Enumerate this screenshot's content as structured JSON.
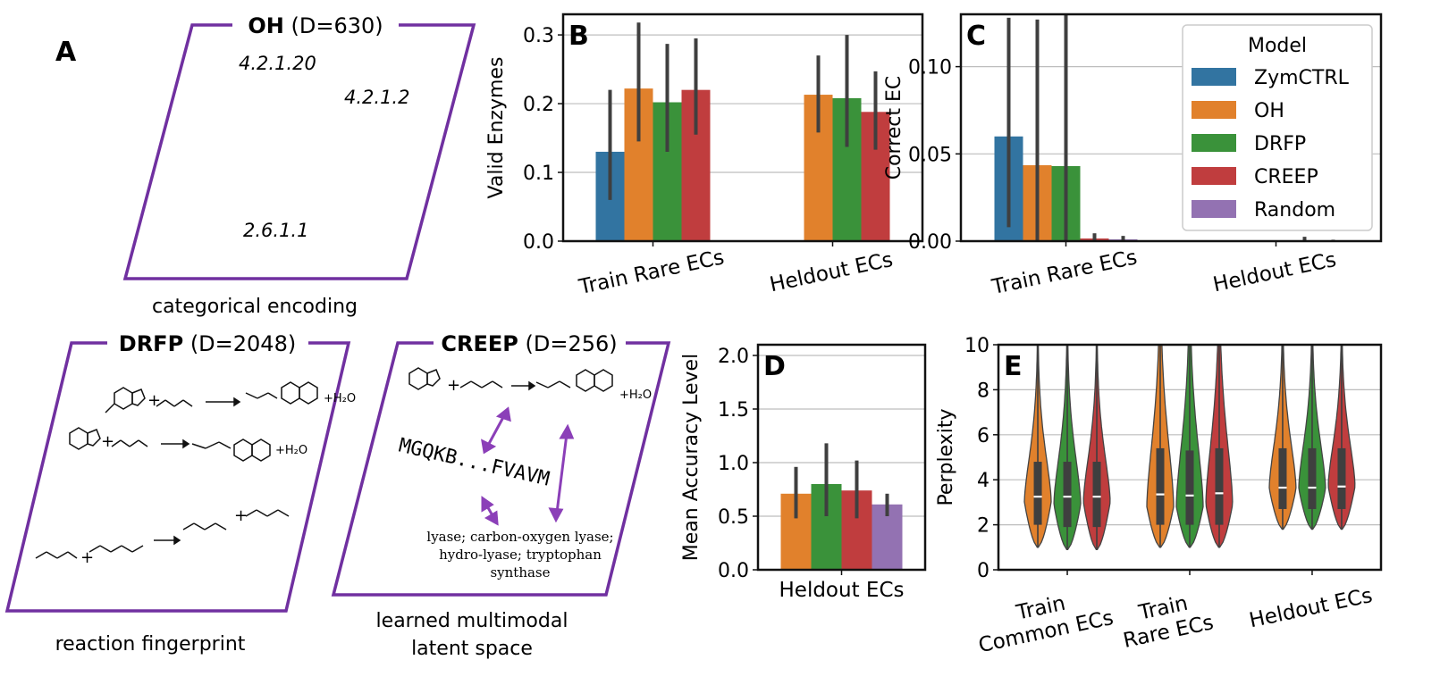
{
  "panel_labels": {
    "a": "A",
    "b": "B",
    "c": "C",
    "d": "D",
    "e": "E"
  },
  "colors": {
    "blue": "#3274a1",
    "orange": "#e1812c",
    "green": "#3a923a",
    "red": "#c03d3e",
    "purple": "#9372b2",
    "frame": "#7030a0",
    "grid": "#bdbdbd",
    "err": "#3f3f3f"
  },
  "schematic": {
    "oh": {
      "name": "OH",
      "dim": "(D=630)",
      "ecs": [
        "4.2.1.20",
        "4.2.1.2",
        "2.6.1.1"
      ],
      "caption": "categorical encoding"
    },
    "drfp": {
      "name": "DRFP",
      "dim": "(D=2048)",
      "caption": "reaction fingerprint"
    },
    "creep": {
      "name": "CREEP",
      "dim": "(D=256)",
      "sequence": "MGQKB...FVAVM",
      "text_lines": [
        "lyase; carbon-oxygen lyase;",
        "hydro-lyase; tryptophan",
        "synthase"
      ],
      "caption_lines": [
        "learned multimodal",
        "latent space"
      ]
    },
    "chem": {
      "water": "+H₂O",
      "plus": "+"
    }
  },
  "chart_data": [
    {
      "id": "B",
      "type": "bar",
      "ylabel": "Valid Enzymes",
      "ylim": [
        0,
        0.33
      ],
      "yticks": [
        0.0,
        0.1,
        0.2,
        0.3
      ],
      "ytick_labels": [
        "0.0",
        "0.1",
        "0.2",
        "0.3"
      ],
      "categories": [
        "Train Rare ECs",
        "Heldout ECs"
      ],
      "series": [
        {
          "name": "ZymCTRL",
          "color": "blue",
          "values": [
            0.13,
            null
          ],
          "err_low": [
            0.06,
            null
          ],
          "err_high": [
            0.22,
            null
          ]
        },
        {
          "name": "OH",
          "color": "orange",
          "values": [
            0.222,
            0.213
          ],
          "err_low": [
            0.145,
            0.158
          ],
          "err_high": [
            0.318,
            0.27
          ]
        },
        {
          "name": "DRFP",
          "color": "green",
          "values": [
            0.202,
            0.208
          ],
          "err_low": [
            0.13,
            0.137
          ],
          "err_high": [
            0.287,
            0.3
          ]
        },
        {
          "name": "CREEP",
          "color": "red",
          "values": [
            0.22,
            0.188
          ],
          "err_low": [
            0.155,
            0.133
          ],
          "err_high": [
            0.295,
            0.247
          ]
        }
      ]
    },
    {
      "id": "C",
      "type": "bar",
      "ylabel": "Correct EC",
      "ylim": [
        0,
        0.13
      ],
      "yticks": [
        0.0,
        0.05,
        0.1
      ],
      "ytick_labels": [
        "0.00",
        "0.05",
        "0.10"
      ],
      "categories": [
        "Train Rare ECs",
        "Heldout ECs"
      ],
      "series": [
        {
          "name": "ZymCTRL",
          "color": "blue",
          "values": [
            0.06,
            null
          ],
          "err_low": [
            0.008,
            null
          ],
          "err_high": [
            0.128,
            null
          ]
        },
        {
          "name": "OH",
          "color": "orange",
          "values": [
            0.0435,
            0.0002
          ],
          "err_low": [
            0.0,
            0.0
          ],
          "err_high": [
            0.127,
            0.0005
          ]
        },
        {
          "name": "DRFP",
          "color": "green",
          "values": [
            0.043,
            0.0002
          ],
          "err_low": [
            0.0,
            0.0
          ],
          "err_high": [
            0.13,
            0.0005
          ]
        },
        {
          "name": "CREEP",
          "color": "red",
          "values": [
            0.0015,
            0.0003
          ],
          "err_low": [
            0.0,
            0.0
          ],
          "err_high": [
            0.0045,
            0.0025
          ]
        },
        {
          "name": "Random",
          "color": "purple",
          "values": [
            0.001,
            0.0003
          ],
          "err_low": [
            0.0,
            0.0
          ],
          "err_high": [
            0.003,
            0.0008
          ]
        }
      ],
      "legend": {
        "title": "Model",
        "entries": [
          "ZymCTRL",
          "OH",
          "DRFP",
          "CREEP",
          "Random"
        ],
        "placement": "top-right"
      }
    },
    {
      "id": "D",
      "type": "bar",
      "ylabel": "Mean Accuracy Level",
      "ylim": [
        0,
        2.1
      ],
      "yticks": [
        0.0,
        0.5,
        1.0,
        1.5,
        2.0
      ],
      "ytick_labels": [
        "0.0",
        "0.5",
        "1.0",
        "1.5",
        "2.0"
      ],
      "categories": [
        "Heldout ECs"
      ],
      "series": [
        {
          "name": "OH",
          "color": "orange",
          "values": [
            0.71
          ],
          "err_low": [
            0.48
          ],
          "err_high": [
            0.96
          ]
        },
        {
          "name": "DRFP",
          "color": "green",
          "values": [
            0.8
          ],
          "err_low": [
            0.5
          ],
          "err_high": [
            1.18
          ]
        },
        {
          "name": "CREEP",
          "color": "red",
          "values": [
            0.74
          ],
          "err_low": [
            0.48
          ],
          "err_high": [
            1.02
          ]
        },
        {
          "name": "Random",
          "color": "purple",
          "values": [
            0.61
          ],
          "err_low": [
            0.5
          ],
          "err_high": [
            0.71
          ]
        }
      ]
    },
    {
      "id": "E",
      "type": "violin",
      "ylabel": "Perplexity",
      "ylim": [
        0,
        10
      ],
      "yticks": [
        0,
        2,
        4,
        6,
        8,
        10
      ],
      "ytick_labels": [
        "0",
        "2",
        "4",
        "6",
        "8",
        "10"
      ],
      "categories": [
        [
          "Train",
          "Common ECs"
        ],
        [
          "Train",
          "Rare ECs"
        ],
        [
          "Heldout ECs"
        ]
      ],
      "series_names": [
        "OH",
        "DRFP",
        "CREEP"
      ],
      "series_colors": [
        "orange",
        "green",
        "red"
      ],
      "groups": [
        [
          {
            "q1": 2.0,
            "median": 3.25,
            "q3": 4.8,
            "min": 1.0,
            "max": 10,
            "mode": 3.0
          },
          {
            "q1": 1.9,
            "median": 3.25,
            "q3": 4.8,
            "min": 0.9,
            "max": 10,
            "mode": 2.9
          },
          {
            "q1": 1.9,
            "median": 3.25,
            "q3": 4.8,
            "min": 0.9,
            "max": 10,
            "mode": 3.0
          }
        ],
        [
          {
            "q1": 2.0,
            "median": 3.35,
            "q3": 5.4,
            "min": 1.0,
            "max": 10,
            "mode": 2.8
          },
          {
            "q1": 2.0,
            "median": 3.3,
            "q3": 5.3,
            "min": 1.0,
            "max": 10,
            "mode": 2.8
          },
          {
            "q1": 2.0,
            "median": 3.4,
            "q3": 5.4,
            "min": 1.0,
            "max": 10,
            "mode": 2.9
          }
        ],
        [
          {
            "q1": 2.7,
            "median": 3.65,
            "q3": 5.4,
            "min": 1.8,
            "max": 10,
            "mode": 3.6
          },
          {
            "q1": 2.7,
            "median": 3.65,
            "q3": 5.4,
            "min": 1.8,
            "max": 10,
            "mode": 3.6
          },
          {
            "q1": 2.7,
            "median": 3.7,
            "q3": 5.4,
            "min": 1.8,
            "max": 10,
            "mode": 3.7
          }
        ]
      ]
    }
  ]
}
